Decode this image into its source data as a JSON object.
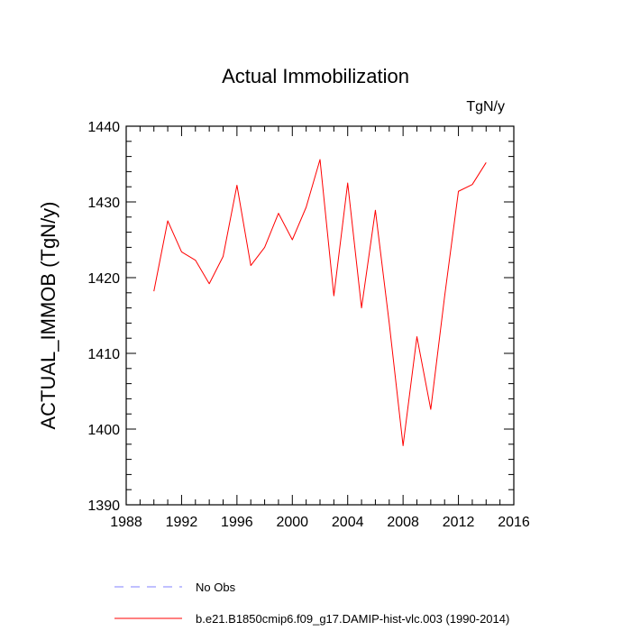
{
  "chart_data": {
    "type": "line",
    "title": "Actual Immobilization",
    "units_label": "TgN/y",
    "xlabel": "",
    "ylabel": "ACTUAL_IMMOB  (TgN/y)",
    "xlim": [
      1988,
      2016
    ],
    "ylim": [
      1390,
      1440
    ],
    "xticks": [
      1988,
      1992,
      1996,
      2000,
      2004,
      2008,
      2012,
      2016
    ],
    "xtick_labels": [
      "1988",
      "1992",
      "1996",
      "2000",
      "2004",
      "2008",
      "2012",
      "2016"
    ],
    "yticks": [
      1390,
      1400,
      1410,
      1420,
      1430,
      1440
    ],
    "ytick_labels": [
      "1390",
      "1400",
      "1410",
      "1420",
      "1430",
      "1440"
    ],
    "grid": false,
    "series": [
      {
        "name": "b.e21.B1850cmip6.f09_g17.DAMIP-hist-vlc.003 (1990-2014)",
        "color": "#ff0000",
        "style": "solid",
        "x": [
          1990,
          1991,
          1992,
          1993,
          1994,
          1995,
          1996,
          1997,
          1998,
          1999,
          2000,
          2001,
          2002,
          2003,
          2004,
          2005,
          2006,
          2007,
          2008,
          2009,
          2010,
          2011,
          2012,
          2013,
          2014
        ],
        "values": [
          1418.2,
          1427.5,
          1423.4,
          1422.3,
          1419.2,
          1422.8,
          1432.2,
          1421.6,
          1424.0,
          1428.5,
          1425.0,
          1429.3,
          1435.6,
          1417.6,
          1432.5,
          1416.0,
          1428.9,
          1414.0,
          1397.8,
          1412.2,
          1402.6,
          1417.5,
          1431.4,
          1432.3,
          1435.2
        ]
      }
    ],
    "legend": [
      {
        "label": "No Obs",
        "color": "#8080ff",
        "style": "dashed"
      },
      {
        "label": "b.e21.B1850cmip6.f09_g17.DAMIP-hist-vlc.003 (1990-2014)",
        "color": "#ff0000",
        "style": "solid"
      }
    ]
  }
}
